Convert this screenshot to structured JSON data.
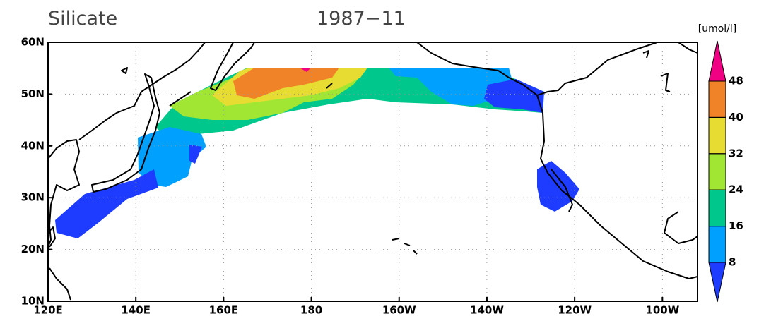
{
  "map": {
    "title": "Silicate",
    "subtitle": "1987−11",
    "units": "[umol/l]",
    "xlim": [
      120,
      268
    ],
    "ylim": [
      10,
      60
    ],
    "xticks": [
      {
        "value": 120,
        "label": "120E"
      },
      {
        "value": 140,
        "label": "140E"
      },
      {
        "value": 160,
        "label": "160E"
      },
      180,
      {
        "value": 200,
        "label": "160W"
      },
      {
        "value": 220,
        "label": "140W"
      },
      {
        "value": 240,
        "label": "120W"
      },
      {
        "value": 260,
        "label": "100W"
      }
    ],
    "yticks": [
      {
        "value": 10,
        "label": "10N"
      },
      {
        "value": 20,
        "label": "20N"
      },
      {
        "value": 30,
        "label": "30N"
      },
      {
        "value": 40,
        "label": "40N"
      },
      {
        "value": 50,
        "label": "50N"
      },
      {
        "value": 60,
        "label": "60N"
      }
    ],
    "grid": true,
    "colorbar": {
      "levels": [
        8,
        16,
        24,
        32,
        40,
        48
      ],
      "colors": [
        "#1e3cff",
        "#00a0ff",
        "#00c88c",
        "#a0e632",
        "#e6dc32",
        "#f08228",
        "#f00082"
      ]
    }
  }
}
